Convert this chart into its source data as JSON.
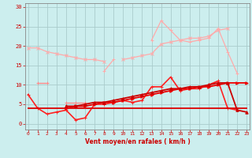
{
  "x": [
    0,
    1,
    2,
    3,
    4,
    5,
    6,
    7,
    8,
    9,
    10,
    11,
    12,
    13,
    14,
    15,
    16,
    17,
    18,
    19,
    20,
    21,
    22,
    23
  ],
  "series": [
    {
      "color": "#ffaaaa",
      "linewidth": 0.9,
      "marker": "x",
      "markersize": 2.5,
      "values": [
        19.5,
        19.5,
        18.5,
        18.0,
        17.5,
        17.0,
        16.5,
        16.5,
        16.0,
        null,
        null,
        null,
        null,
        null,
        null,
        null,
        null,
        null,
        null,
        null,
        null,
        null,
        null,
        null
      ]
    },
    {
      "color": "#ffaaaa",
      "linewidth": 0.9,
      "marker": "x",
      "markersize": 2.5,
      "values": [
        null,
        null,
        null,
        null,
        null,
        null,
        null,
        null,
        null,
        null,
        16.5,
        17.0,
        17.5,
        18.0,
        20.5,
        21.0,
        21.5,
        22.0,
        22.0,
        22.5,
        24.0,
        24.5,
        null,
        null
      ]
    },
    {
      "color": "#ffaaaa",
      "linewidth": 0.9,
      "marker": "+",
      "markersize": 3,
      "values": [
        null,
        null,
        null,
        null,
        null,
        null,
        null,
        null,
        13.5,
        16.5,
        null,
        null,
        null,
        21.5,
        26.5,
        24.0,
        21.5,
        21.0,
        21.5,
        22.0,
        24.5,
        18.5,
        13.0,
        null
      ]
    },
    {
      "color": "#ff8888",
      "linewidth": 1.0,
      "marker": "+",
      "markersize": 3,
      "values": [
        null,
        10.5,
        10.5,
        null,
        null,
        null,
        null,
        null,
        null,
        null,
        null,
        null,
        null,
        null,
        null,
        null,
        null,
        null,
        null,
        null,
        null,
        null,
        null,
        null
      ]
    },
    {
      "color": "#ff8888",
      "linewidth": 1.0,
      "marker": "+",
      "markersize": 3,
      "values": [
        null,
        null,
        null,
        null,
        5.5,
        5.5,
        5.5,
        null,
        null,
        null,
        null,
        null,
        null,
        null,
        null,
        null,
        null,
        null,
        null,
        null,
        null,
        null,
        null,
        null
      ]
    },
    {
      "color": "#ff2222",
      "linewidth": 1.2,
      "marker": "+",
      "markersize": 3,
      "values": [
        7.5,
        4.0,
        2.5,
        3.0,
        3.5,
        1.0,
        1.5,
        5.0,
        5.0,
        5.5,
        6.0,
        5.5,
        6.0,
        9.5,
        9.5,
        12.0,
        8.5,
        9.0,
        9.0,
        10.0,
        11.0,
        4.0,
        3.5,
        null
      ]
    },
    {
      "color": "#dd0000",
      "linewidth": 1.3,
      "marker": null,
      "markersize": 0,
      "values": [
        4.0,
        4.0,
        4.0,
        4.0,
        4.0,
        4.0,
        4.0,
        4.0,
        4.0,
        4.0,
        4.0,
        4.0,
        4.0,
        4.0,
        4.0,
        4.0,
        4.0,
        4.0,
        4.0,
        4.0,
        4.0,
        4.0,
        4.0,
        4.0
      ]
    },
    {
      "color": "#ee0000",
      "linewidth": 1.3,
      "marker": ">",
      "markersize": 2.5,
      "values": [
        null,
        null,
        null,
        null,
        4.0,
        4.5,
        4.5,
        5.0,
        5.5,
        5.5,
        6.0,
        6.5,
        7.0,
        7.5,
        8.0,
        8.5,
        9.0,
        9.0,
        9.5,
        9.5,
        10.0,
        10.5,
        10.5,
        10.5
      ]
    },
    {
      "color": "#cc0000",
      "linewidth": 1.3,
      "marker": "^",
      "markersize": 2.5,
      "values": [
        null,
        null,
        null,
        null,
        4.5,
        4.5,
        5.0,
        5.5,
        5.5,
        6.0,
        6.5,
        7.0,
        7.5,
        8.0,
        8.5,
        9.0,
        9.0,
        9.5,
        9.5,
        10.0,
        10.5,
        10.5,
        3.5,
        3.0
      ]
    }
  ],
  "xlim": [
    -0.3,
    23.3
  ],
  "ylim": [
    -1.5,
    31
  ],
  "yticks": [
    0,
    5,
    10,
    15,
    20,
    25,
    30
  ],
  "xticks": [
    0,
    1,
    2,
    3,
    4,
    5,
    6,
    7,
    8,
    9,
    10,
    11,
    12,
    13,
    14,
    15,
    16,
    17,
    18,
    19,
    20,
    21,
    22,
    23
  ],
  "xlabel": "Vent moyen/en rafales ( km/h )",
  "bg_color": "#cceeee",
  "grid_color": "#aacccc",
  "tick_color": "#cc0000",
  "label_color": "#cc0000"
}
